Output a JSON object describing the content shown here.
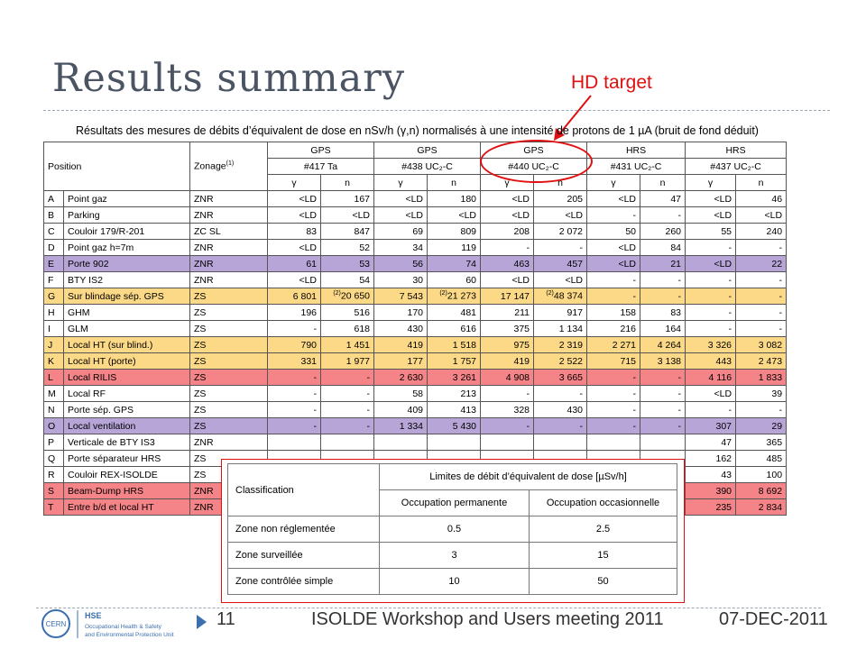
{
  "title": "Results summary",
  "annotation": "HD target",
  "caption": "Résultats des mesures de débits d’équivalent de dose en nSv/h (γ,n) normalisés à une intensité de protons de 1 µA (bruit de fond déduit)",
  "table": {
    "header": {
      "position": "Position",
      "zonage": "Zonage",
      "zonage_sup": "(1)",
      "groups": [
        {
          "facility": "GPS",
          "target": "#417 Ta"
        },
        {
          "facility": "GPS",
          "target": "#438 UC₂-C"
        },
        {
          "facility": "GPS",
          "target": "#440 UC₂-C"
        },
        {
          "facility": "HRS",
          "target": "#431  UC₂-C"
        },
        {
          "facility": "HRS",
          "target": "#437 UC₂-C"
        }
      ],
      "gamma": "γ",
      "neutron": "n"
    },
    "rows": [
      {
        "id": "A",
        "position": "Point gaz",
        "zone": "ZNR",
        "values": [
          "<LD",
          "167",
          "<LD",
          "180",
          "<LD",
          "205",
          "<LD",
          "47",
          "<LD",
          "46"
        ]
      },
      {
        "id": "B",
        "position": "Parking",
        "zone": "ZNR",
        "values": [
          "<LD",
          "<LD",
          "<LD",
          "<LD",
          "<LD",
          "<LD",
          "-",
          "-",
          "<LD",
          "<LD"
        ]
      },
      {
        "id": "C",
        "position": "Couloir 179/R-201",
        "zone": "ZC SL",
        "values": [
          "83",
          "847",
          "69",
          "809",
          "208",
          "2 072",
          "50",
          "260",
          "55",
          "240"
        ]
      },
      {
        "id": "D",
        "position": "Point gaz h=7m",
        "zone": "ZNR",
        "values": [
          "<LD",
          "52",
          "34",
          "119",
          "-",
          "-",
          "<LD",
          "84",
          "-",
          "-"
        ]
      },
      {
        "id": "E",
        "position": "Porte 902",
        "zone": "ZNR",
        "values": [
          "61",
          "53",
          "56",
          "74",
          "463",
          "457",
          "<LD",
          "21",
          "<LD",
          "22"
        ]
      },
      {
        "id": "F",
        "position": "BTY IS2",
        "zone": "ZNR",
        "values": [
          "<LD",
          "54",
          "30",
          "60",
          "<LD",
          "<LD",
          "-",
          "-",
          "-",
          "-"
        ]
      },
      {
        "id": "G",
        "position": "Sur blindage sép. GPS",
        "zone": "ZS",
        "values": [
          "6 801",
          "20 650",
          "7 543",
          "21 273",
          "17 147",
          "48 374",
          "-",
          "-",
          "-",
          "-"
        ]
      },
      {
        "id": "H",
        "position": "GHM",
        "zone": "ZS",
        "values": [
          "196",
          "516",
          "170",
          "481",
          "211",
          "917",
          "158",
          "83",
          "-",
          "-"
        ]
      },
      {
        "id": "I",
        "position": "GLM",
        "zone": "ZS",
        "values": [
          "-",
          "618",
          "430",
          "616",
          "375",
          "1 134",
          "216",
          "164",
          "-",
          "-"
        ]
      },
      {
        "id": "J",
        "position": "Local HT (sur blind.)",
        "zone": "ZS",
        "values": [
          "790",
          "1 451",
          "419",
          "1 518",
          "975",
          "2 319",
          "2 271",
          "4 264",
          "3 326",
          "3 082"
        ]
      },
      {
        "id": "K",
        "position": "Local HT (porte)",
        "zone": "ZS",
        "values": [
          "331",
          "1 977",
          "177",
          "1 757",
          "419",
          "2 522",
          "715",
          "3 138",
          "443",
          "2 473"
        ]
      },
      {
        "id": "L",
        "position": "Local RILIS",
        "zone": "ZS",
        "values": [
          "-",
          "-",
          "2 630",
          "3 261",
          "4 908",
          "3 665",
          "-",
          "-",
          "4 116",
          "1 833"
        ]
      },
      {
        "id": "M",
        "position": "Local RF",
        "zone": "ZS",
        "values": [
          "-",
          "-",
          "58",
          "213",
          "-",
          "-",
          "-",
          "-",
          "<LD",
          "39"
        ]
      },
      {
        "id": "N",
        "position": "Porte sép. GPS",
        "zone": "ZS",
        "values": [
          "-",
          "-",
          "409",
          "413",
          "328",
          "430",
          "-",
          "-",
          "-",
          "-"
        ]
      },
      {
        "id": "O",
        "position": "Local ventilation",
        "zone": "ZS",
        "values": [
          "-",
          "-",
          "1 334",
          "5 430",
          "-",
          "-",
          "-",
          "-",
          "307",
          "29"
        ]
      },
      {
        "id": "P",
        "position": "Verticale de BTY IS3",
        "zone": "ZNR",
        "values": [
          "",
          "",
          "",
          "",
          "",
          "",
          "",
          "",
          "47",
          "365"
        ]
      },
      {
        "id": "Q",
        "position": "Porte séparateur HRS",
        "zone": "ZS",
        "values": [
          "",
          "",
          "",
          "",
          "",
          "",
          "",
          "",
          "162",
          "485"
        ]
      },
      {
        "id": "R",
        "position": "Couloir REX-ISOLDE",
        "zone": "ZS",
        "values": [
          "",
          "",
          "",
          "",
          "",
          "",
          "",
          "",
          "43",
          "100"
        ]
      },
      {
        "id": "S",
        "position": "Beam-Dump HRS",
        "zone": "ZNR",
        "values": [
          "",
          "",
          "",
          "",
          "",
          "",
          "",
          "",
          "390",
          "8 692"
        ]
      },
      {
        "id": "T",
        "position": "Entre b/d et local HT",
        "zone": "ZNR",
        "values": [
          "",
          "",
          "",
          "",
          "",
          "",
          "",
          "",
          "235",
          "2 834"
        ]
      }
    ],
    "footnote_mark": "(2)",
    "row_colors": {
      "E": "purple",
      "O": "purple",
      "G": "yellow",
      "J": "yellow",
      "K": "yellow",
      "L": "red",
      "S": "red",
      "T": "red"
    }
  },
  "limits": {
    "classification": "Classification",
    "header": "Limites de débit d’équivalent de dose [µSv/h]",
    "col_perm": "Occupation permanente",
    "col_occ": "Occupation occasionnelle",
    "rows": [
      {
        "zone": "Zone non réglementée",
        "perm": "0.5",
        "occ": "2.5"
      },
      {
        "zone": "Zone surveillée",
        "perm": "3",
        "occ": "15"
      },
      {
        "zone": "Zone contrôlée simple",
        "perm": "10",
        "occ": "50"
      }
    ]
  },
  "footer": {
    "logo_org": "CERN",
    "logo_unit": "HSE",
    "logo_line1": "Occupational Health & Safety",
    "logo_line2": "and Environmental Protection Unit",
    "slide_number": "11",
    "event": "ISOLDE Workshop and Users meeting 2011",
    "date": "07-DEC-2011"
  },
  "colors": {
    "purple": "#b7a5d8",
    "yellow": "#fcd986",
    "red": "#f48487",
    "annotation": "#e01010"
  }
}
